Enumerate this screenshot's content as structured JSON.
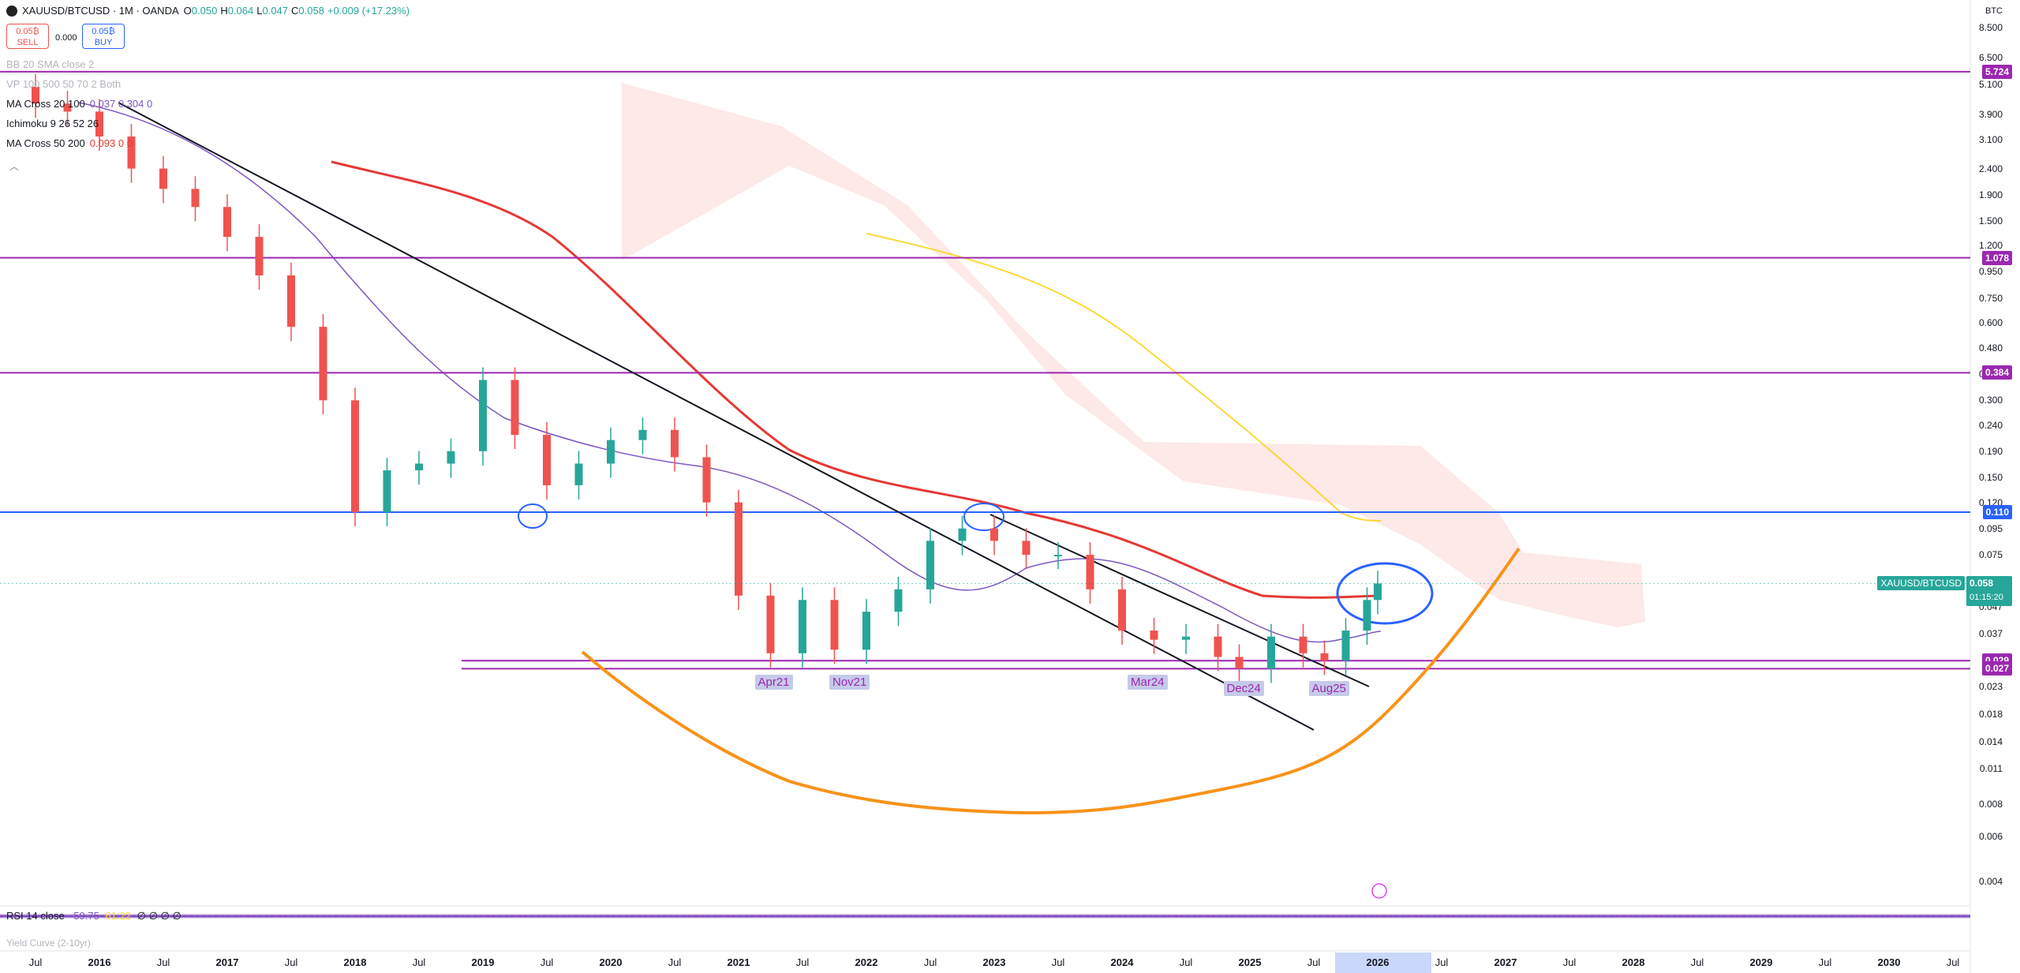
{
  "header": {
    "symbol": "XAUUSD/BTCUSD · 1M · OANDA",
    "ohlc": [
      {
        "k": "O",
        "v": "0.050"
      },
      {
        "k": "H",
        "v": "0.064"
      },
      {
        "k": "L",
        "v": "0.047"
      },
      {
        "k": "C",
        "v": "0.058"
      },
      {
        "k": "",
        "v": "+0.009 (+17.23%)"
      }
    ]
  },
  "trade": {
    "sell_price": "0.05₿",
    "sell_label": "SELL",
    "spread": "0.000",
    "buy_price": "0.05₿",
    "buy_label": "BUY"
  },
  "indicators": [
    {
      "name": "BB 20 SMA close 2",
      "values": "",
      "faded": true
    },
    {
      "name": "VP 100 500 50 70 2 Both",
      "values": "",
      "faded": true
    },
    {
      "name": "MA Cross 20 100",
      "values": "0.037  0.304  0",
      "faded": false
    },
    {
      "name": "Ichimoku 9 26 52 26",
      "values": "",
      "faded": false
    },
    {
      "name": "MA Cross 50 200",
      "values": "0.093  0  0",
      "faded": false
    }
  ],
  "scale_unit": "BTC",
  "price_axis_ticks": [
    "8.500",
    "6.500",
    "5.100",
    "3.900",
    "3.100",
    "2.400",
    "1.900",
    "1.500",
    "1.200",
    "0.950",
    "0.750",
    "0.600",
    "0.480",
    "0.380",
    "0.300",
    "0.240",
    "0.190",
    "0.150",
    "0.120",
    "0.095",
    "0.075",
    "0.047",
    "0.037",
    "0.023",
    "0.018",
    "0.014",
    "0.011",
    "0.008",
    "0.006",
    "0.004"
  ],
  "level_labels": [
    {
      "text": "5.724",
      "color": "#9c27b0"
    },
    {
      "text": "1.078",
      "color": "#9c27b0"
    },
    {
      "text": "0.384",
      "color": "#9c27b0"
    },
    {
      "text": "0.110",
      "color": "#2962ff"
    },
    {
      "text": "0.029",
      "color": "#9c27b0"
    },
    {
      "text": "0.027",
      "color": "#9c27b0"
    }
  ],
  "current_price": {
    "symbol": "XAUUSD/BTCUSD",
    "price": "0.058",
    "countdown": "01:15:20",
    "color": "#26a69a"
  },
  "annotations": [
    "Apr21",
    "Nov21",
    "Mar24",
    "Dec24",
    "Aug25"
  ],
  "x_axis_labels": [
    "Jul",
    "2016",
    "Jul",
    "2017",
    "Jul",
    "2018",
    "Jul",
    "2019",
    "Jul",
    "2020",
    "Jul",
    "2021",
    "Jul",
    "2022",
    "Jul",
    "2023",
    "Jul",
    "2024",
    "Jul",
    "2025",
    "Jul",
    "2026",
    "Jul",
    "2027",
    "Jul",
    "2028",
    "Jul",
    "2029",
    "Jul",
    "2030",
    "Jul"
  ],
  "rsi": {
    "name": "RSI 14 close",
    "value": "59.75",
    "value2": "61.22",
    "level": "50.00"
  },
  "yield_curve": "Yield Curve (2-10yr)",
  "colors": {
    "up": "#26a69a",
    "down": "#ef5350",
    "purple": "#9c27b0",
    "blue": "#2962ff",
    "orange": "#f7931a",
    "ma_red": "#e53935",
    "ma_purple": "#7e57c2",
    "yellow": "#fbd835",
    "cloud": "#fde4e1"
  },
  "chart_data": {
    "type": "candlestick",
    "title": "XAUUSD/BTCUSD · 1M · OANDA",
    "y_scale": "log",
    "ylim": [
      0.004,
      8.5
    ],
    "x_start": "2015-07",
    "x_end": "2030-07",
    "y_unit": "BTC",
    "horizontal_levels": [
      5.724,
      1.078,
      0.384,
      0.11,
      0.029,
      0.027
    ],
    "annotation_points": [
      {
        "label": "Apr21",
        "date": "2021-04",
        "value": 0.029
      },
      {
        "label": "Nov21",
        "date": "2021-11",
        "value": 0.029
      },
      {
        "label": "Mar24",
        "date": "2024-03",
        "value": 0.03
      },
      {
        "label": "Dec24",
        "date": "2024-12",
        "value": 0.026
      },
      {
        "label": "Aug25",
        "date": "2025-08",
        "value": 0.028
      }
    ],
    "closes": [
      {
        "date": "2015-07",
        "close": 4.3
      },
      {
        "date": "2015-10",
        "close": 4.0
      },
      {
        "date": "2016-01",
        "close": 3.2
      },
      {
        "date": "2016-04",
        "close": 2.4
      },
      {
        "date": "2016-07",
        "close": 2.0
      },
      {
        "date": "2016-10",
        "close": 1.7
      },
      {
        "date": "2017-01",
        "close": 1.3
      },
      {
        "date": "2017-04",
        "close": 0.92
      },
      {
        "date": "2017-07",
        "close": 0.58
      },
      {
        "date": "2017-10",
        "close": 0.3
      },
      {
        "date": "2018-01",
        "close": 0.11
      },
      {
        "date": "2018-04",
        "close": 0.16
      },
      {
        "date": "2018-07",
        "close": 0.17
      },
      {
        "date": "2018-10",
        "close": 0.19
      },
      {
        "date": "2019-01",
        "close": 0.36
      },
      {
        "date": "2019-04",
        "close": 0.22
      },
      {
        "date": "2019-07",
        "close": 0.14
      },
      {
        "date": "2019-10",
        "close": 0.17
      },
      {
        "date": "2020-01",
        "close": 0.21
      },
      {
        "date": "2020-04",
        "close": 0.23
      },
      {
        "date": "2020-07",
        "close": 0.18
      },
      {
        "date": "2020-10",
        "close": 0.12
      },
      {
        "date": "2021-01",
        "close": 0.052
      },
      {
        "date": "2021-04",
        "close": 0.031
      },
      {
        "date": "2021-07",
        "close": 0.05
      },
      {
        "date": "2021-10",
        "close": 0.032
      },
      {
        "date": "2022-01",
        "close": 0.045
      },
      {
        "date": "2022-04",
        "close": 0.055
      },
      {
        "date": "2022-07",
        "close": 0.085
      },
      {
        "date": "2022-10",
        "close": 0.095
      },
      {
        "date": "2023-01",
        "close": 0.085
      },
      {
        "date": "2023-04",
        "close": 0.075
      },
      {
        "date": "2023-07",
        "close": 0.075
      },
      {
        "date": "2023-10",
        "close": 0.055
      },
      {
        "date": "2024-01",
        "close": 0.038
      },
      {
        "date": "2024-04",
        "close": 0.035
      },
      {
        "date": "2024-07",
        "close": 0.036
      },
      {
        "date": "2024-10",
        "close": 0.03
      },
      {
        "date": "2024-12",
        "close": 0.027
      },
      {
        "date": "2025-03",
        "close": 0.036
      },
      {
        "date": "2025-06",
        "close": 0.031
      },
      {
        "date": "2025-08",
        "close": 0.029
      },
      {
        "date": "2025-10",
        "close": 0.038
      },
      {
        "date": "2025-12",
        "close": 0.05
      },
      {
        "date": "2026-01",
        "close": 0.058
      }
    ]
  }
}
